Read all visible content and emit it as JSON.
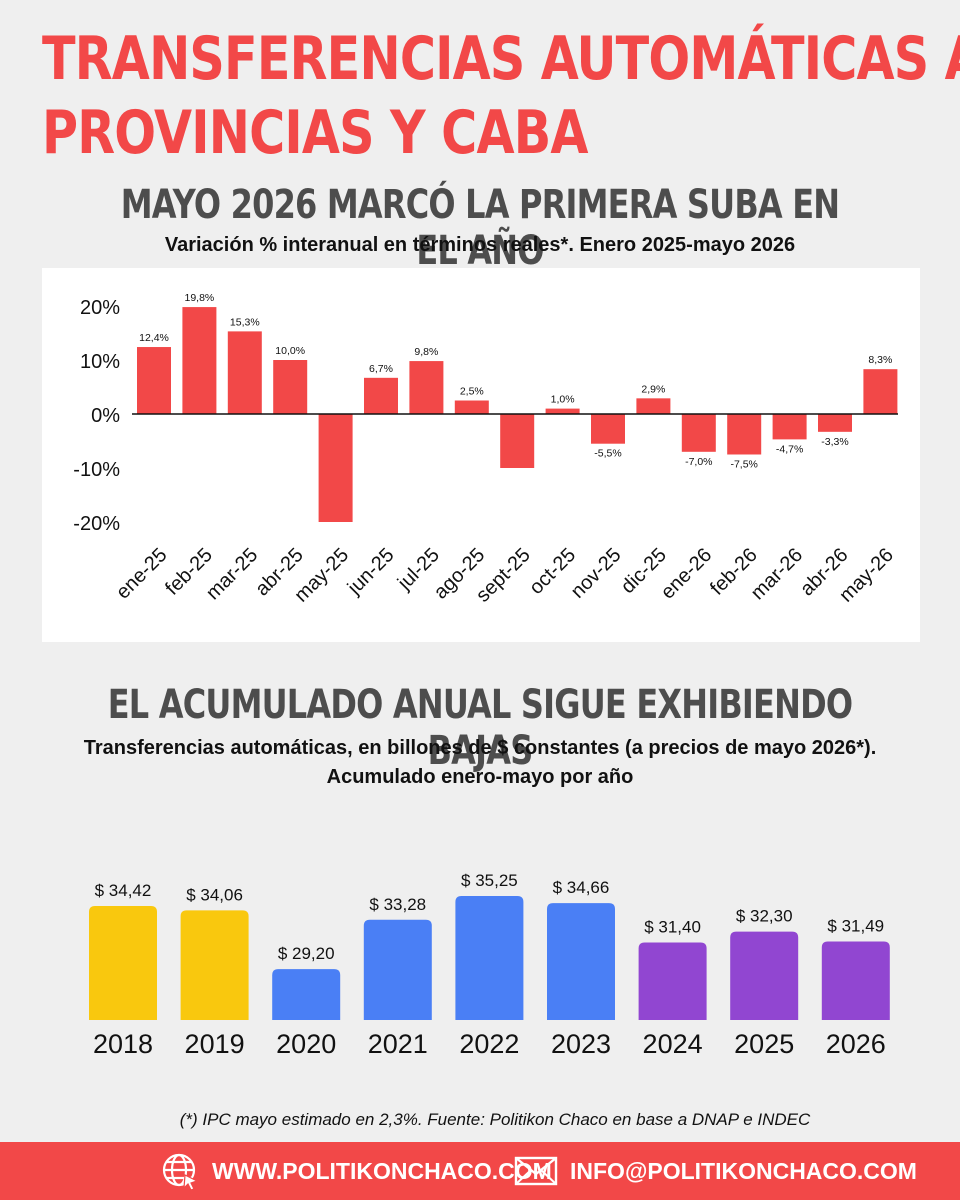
{
  "header": {
    "title_line1": "TRANSFERENCIAS AUTOMÁTICAS A",
    "title_line2": "PROVINCIAS Y CABA"
  },
  "section1": {
    "title": "MAYO 2026 MARCÓ LA PRIMERA SUBA EN EL AÑO",
    "subtitle": "Variación % interanual en términos reales*. Enero 2025-mayo 2026"
  },
  "section2": {
    "title": "EL ACUMULADO ANUAL SIGUE EXHIBIENDO BAJAS",
    "subtitle_line1": "Transferencias automáticas, en billones de $ constantes (a precios de mayo 2026*).",
    "subtitle_line2": "Acumulado enero-mayo por año"
  },
  "chart_data": [
    {
      "type": "bar",
      "categories": [
        "ene-25",
        "feb-25",
        "mar-25",
        "abr-25",
        "may-25",
        "jun-25",
        "jul-25",
        "ago-25",
        "sept-25",
        "oct-25",
        "nov-25",
        "dic-25",
        "ene-26",
        "feb-26",
        "mar-26",
        "abr-26",
        "may-26"
      ],
      "values": [
        12.4,
        19.8,
        15.3,
        10.0,
        -20.0,
        6.7,
        9.8,
        2.5,
        -10.0,
        1.0,
        -5.5,
        2.9,
        -7.0,
        -7.5,
        -4.7,
        -3.3,
        8.3
      ],
      "data_labels": [
        "12,4%",
        "19,8%",
        "15,3%",
        "10,0%",
        "",
        "6,7%",
        "9,8%",
        "2,5%",
        "",
        "1,0%",
        "-5,5%",
        "2,9%",
        "-7,0%",
        "-7,5%",
        "-4,7%",
        "-3,3%",
        "8,3%"
      ],
      "yticks": [
        "20%",
        "10%",
        "0%",
        "-10%",
        "-20%"
      ],
      "ylim": [
        -20,
        20
      ],
      "bar_color": "#f24848",
      "grid": false
    },
    {
      "type": "bar",
      "categories": [
        "2018",
        "2019",
        "2020",
        "2021",
        "2022",
        "2023",
        "2024",
        "2025",
        "2026"
      ],
      "values": [
        34.42,
        34.06,
        29.2,
        33.28,
        35.25,
        34.66,
        31.4,
        32.3,
        31.49
      ],
      "data_labels": [
        "$ 34,42",
        "$ 34,06",
        "$ 29,20",
        "$ 33,28",
        "$ 35,25",
        "$ 34,66",
        "$ 31,40",
        "$ 32,30",
        "$ 31,49"
      ],
      "colors": [
        "#f9c80e",
        "#f9c80e",
        "#4a7ff5",
        "#4a7ff5",
        "#4a7ff5",
        "#4a7ff5",
        "#9146d1",
        "#9146d1",
        "#9146d1"
      ],
      "grid": false
    }
  ],
  "footnote": "(*) IPC mayo estimado en 2,3%. Fuente: Politikon Chaco en base a DNAP e INDEC",
  "footer": {
    "website": "WWW.POLITIKONCHACO.COM",
    "email": "INFO@POLITIKONCHACO.COM",
    "website_icon": "globe-cursor-icon",
    "email_icon": "envelope-icon"
  }
}
